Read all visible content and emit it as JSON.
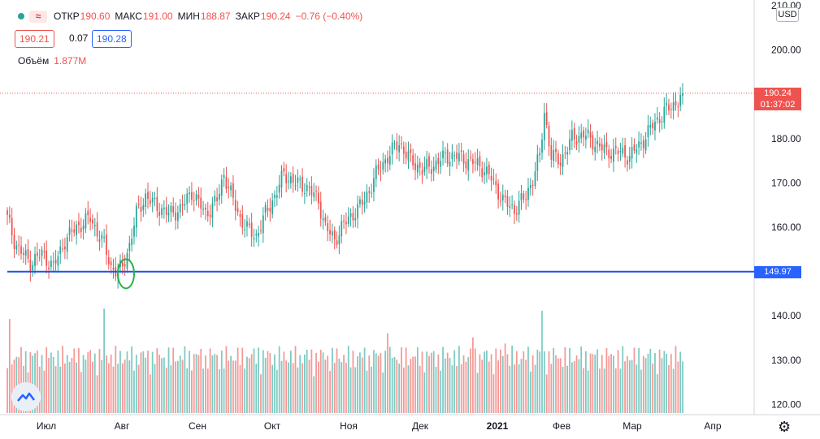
{
  "legend": {
    "wave_icon": "≈",
    "open_label": "ОТКР",
    "open": "190.60",
    "high_label": "МАКС",
    "high": "191.00",
    "low_label": "МИН",
    "low": "188.87",
    "close_label": "ЗАКР",
    "close": "190.24",
    "change": "−0.76 (−0.40%)"
  },
  "quote": {
    "bid": "190.21",
    "spread": "0.07",
    "ask": "190.28"
  },
  "volume_legend": {
    "label": "Объём",
    "value": "1.877M"
  },
  "currency": "USD",
  "price_axis_labels": [
    "210.00",
    "200.00",
    "190.00",
    "180.00",
    "170.00",
    "160.00",
    "150.00",
    "140.00",
    "130.00",
    "120.00"
  ],
  "time_axis_labels": [
    "Июл",
    "Авг",
    "Сен",
    "Окт",
    "Ноя",
    "Дек",
    "2021",
    "Фев",
    "Мар",
    "Апр"
  ],
  "current_price": "190.24",
  "countdown": "01:37:02",
  "horizontal_line_price": "149.97",
  "colors": {
    "up": "#26a69a",
    "down": "#ef5350",
    "hline": "#1e53e5",
    "circle": "#26b34a",
    "tag_red": "#ef5350",
    "tag_blue": "#2962ff"
  },
  "icons": {
    "logo": "tradingview-logo-icon",
    "settings": "gear-icon",
    "status": "status-dot-icon"
  },
  "chart_data": {
    "type": "candlestick",
    "ylim": [
      118,
      211
    ],
    "keypoints": [
      [
        0,
        162
      ],
      [
        3,
        157
      ],
      [
        5,
        155
      ],
      [
        10,
        152
      ],
      [
        15,
        154
      ],
      [
        20,
        151
      ],
      [
        25,
        157
      ],
      [
        30,
        160
      ],
      [
        36,
        162
      ],
      [
        42,
        156
      ],
      [
        45,
        151
      ],
      [
        48,
        150
      ],
      [
        50,
        151
      ],
      [
        53,
        156
      ],
      [
        56,
        163
      ],
      [
        60,
        167
      ],
      [
        64,
        165
      ],
      [
        70,
        163
      ],
      [
        75,
        164
      ],
      [
        80,
        168
      ],
      [
        86,
        163
      ],
      [
        91,
        166
      ],
      [
        94,
        172
      ],
      [
        98,
        166
      ],
      [
        101,
        162
      ],
      [
        105,
        159
      ],
      [
        108,
        158
      ],
      [
        112,
        163
      ],
      [
        116,
        167
      ],
      [
        120,
        172
      ],
      [
        125,
        170
      ],
      [
        130,
        169
      ],
      [
        135,
        166
      ],
      [
        138,
        160
      ],
      [
        142,
        157
      ],
      [
        145,
        160
      ],
      [
        150,
        163
      ],
      [
        155,
        166
      ],
      [
        160,
        172
      ],
      [
        165,
        176
      ],
      [
        170,
        179
      ],
      [
        175,
        175
      ],
      [
        180,
        173
      ],
      [
        185,
        174
      ],
      [
        190,
        176
      ],
      [
        195,
        176
      ],
      [
        200,
        175
      ],
      [
        205,
        174
      ],
      [
        210,
        171
      ],
      [
        215,
        166
      ],
      [
        220,
        164
      ],
      [
        225,
        167
      ],
      [
        228,
        171
      ],
      [
        231,
        176
      ],
      [
        233,
        186
      ],
      [
        236,
        176
      ],
      [
        240,
        175
      ],
      [
        245,
        180
      ],
      [
        250,
        181
      ],
      [
        255,
        179
      ],
      [
        260,
        177
      ],
      [
        265,
        177
      ],
      [
        270,
        176
      ],
      [
        275,
        179
      ],
      [
        280,
        183
      ],
      [
        285,
        186
      ],
      [
        290,
        188
      ],
      [
        293,
        190.24
      ]
    ],
    "volume_range": [
      0,
      2.6
    ]
  }
}
